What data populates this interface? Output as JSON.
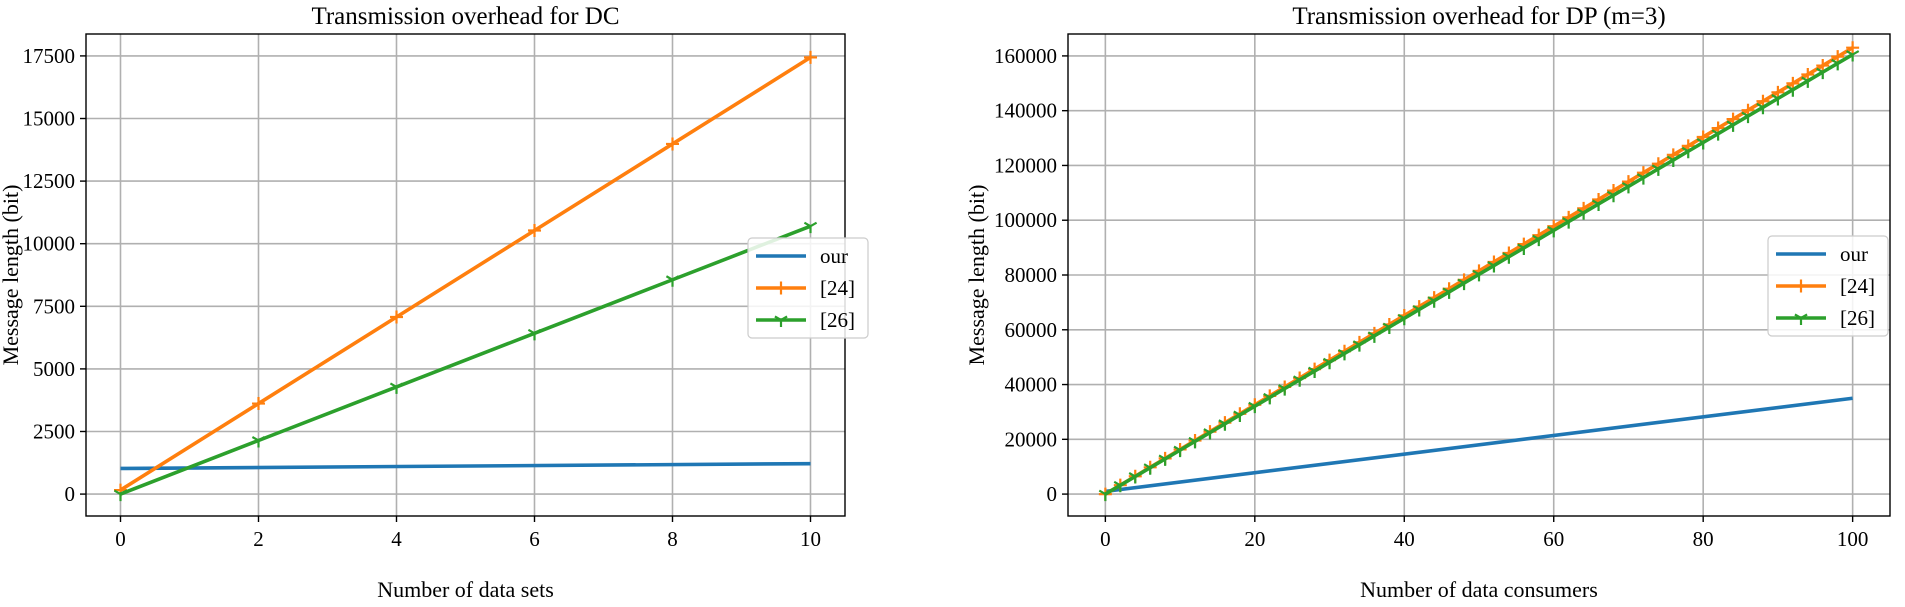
{
  "chart_data": [
    {
      "type": "line",
      "title": "Transmission overhead for DC",
      "xlabel": "Number of data sets",
      "ylabel": "Message length (bit)",
      "xlim": [
        -0.5,
        10.5
      ],
      "ylim": [
        -875,
        18375
      ],
      "xticks": [
        0,
        2,
        4,
        6,
        8,
        10
      ],
      "yticks": [
        0,
        2500,
        5000,
        7500,
        10000,
        12500,
        15000,
        17500
      ],
      "grid": true,
      "legend_position": "center-right",
      "series": [
        {
          "name": "our",
          "color": "#1f77b4",
          "marker": "none",
          "x": [
            0,
            10
          ],
          "y": [
            1024,
            1216
          ]
        },
        {
          "name": "[24]",
          "color": "#ff7f0e",
          "marker": "plus",
          "x": [
            0,
            2,
            4,
            6,
            8,
            10
          ],
          "y": [
            160,
            3616,
            7072,
            10528,
            13984,
            17440
          ]
        },
        {
          "name": "[26]",
          "color": "#2ca02c",
          "marker": "tri",
          "x": [
            0,
            2,
            4,
            6,
            8,
            10
          ],
          "y": [
            0,
            2140,
            4280,
            6420,
            8560,
            10700
          ]
        }
      ]
    },
    {
      "type": "line",
      "title": "Transmission overhead for DP (m=3)",
      "xlabel": "Number of data consumers",
      "ylabel": "Message length (bit)",
      "xlim": [
        -5,
        105
      ],
      "ylim": [
        -8000,
        168000
      ],
      "xticks": [
        0,
        20,
        40,
        60,
        80,
        100
      ],
      "yticks": [
        0,
        20000,
        40000,
        60000,
        80000,
        100000,
        120000,
        140000,
        160000
      ],
      "grid": true,
      "legend_position": "center-right",
      "series": [
        {
          "name": "our",
          "color": "#1f77b4",
          "marker": "none",
          "x": [
            0,
            100
          ],
          "y": [
            1000,
            35000
          ]
        },
        {
          "name": "[24]",
          "color": "#ff7f0e",
          "marker": "plus",
          "x_start": 0,
          "x_end": 100,
          "x_step": 2,
          "y_start": 0,
          "y_end": 163000
        },
        {
          "name": "[26]",
          "color": "#2ca02c",
          "marker": "tri",
          "x_start": 0,
          "x_end": 100,
          "x_step": 2,
          "y_start": 0,
          "y_end": 160500
        }
      ]
    }
  ]
}
